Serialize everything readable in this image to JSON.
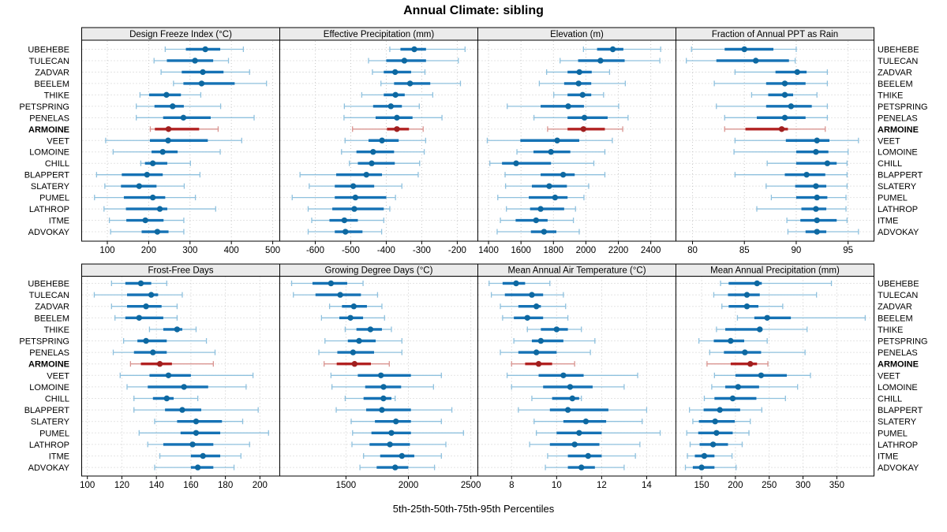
{
  "title": "Annual Climate: sibling",
  "caption": "5th-25th-50th-75th-95th Percentiles",
  "colors": {
    "series": "#1572b5",
    "series_light": "#8fc1de",
    "series_dot": "#0d68a1",
    "highlight": "#b22222",
    "highlight_light": "#d99490",
    "highlight_dot": "#a01f1f",
    "grid": "#c9c9c9",
    "strip_bg": "#ebebeb",
    "border": "#000000",
    "tick": "#000000",
    "text": "#000000"
  },
  "chart_data": {
    "type": "dotplot-percentile-trellis",
    "percentile_labels": [
      "5th",
      "25th",
      "50th",
      "75th",
      "95th"
    ],
    "highlight_site": "ARMOINE",
    "legend_position": "none",
    "grid": "dotted",
    "sites": [
      "UBEHEBE",
      "TULECAN",
      "ZADVAR",
      "BEELEM",
      "THIKE",
      "PETSPRING",
      "PENELAS",
      "ARMOINE",
      "VEET",
      "LOMOINE",
      "CHILL",
      "BLAPPERT",
      "SLATERY",
      "PUMEL",
      "LATHROP",
      "ITME",
      "ADVOKAY"
    ],
    "panels": [
      {
        "id": "design-freeze-index",
        "title": "Design Freeze Index (°C)",
        "row": 0,
        "col": 0,
        "xlim": [
          38,
          517
        ],
        "ticks": [
          100,
          200,
          300,
          400,
          500
        ],
        "tick_labels": [
          "100",
          "200",
          "300",
          "400",
          "500"
        ],
        "values": [
          [
            240,
            290,
            337,
            373,
            429
          ],
          [
            213,
            244,
            312,
            356,
            393
          ],
          [
            230,
            280,
            331,
            381,
            444
          ],
          [
            260,
            284,
            328,
            408,
            485
          ],
          [
            179,
            201,
            243,
            278,
            326
          ],
          [
            170,
            214,
            258,
            285,
            374
          ],
          [
            170,
            235,
            284,
            350,
            455
          ],
          [
            204,
            215,
            248,
            322,
            368
          ],
          [
            96,
            203,
            247,
            343,
            425
          ],
          [
            114,
            207,
            234,
            270,
            373
          ],
          [
            181,
            191,
            210,
            245,
            301
          ],
          [
            74,
            135,
            196,
            234,
            324
          ],
          [
            94,
            133,
            177,
            219,
            286
          ],
          [
            69,
            140,
            210,
            240,
            313
          ],
          [
            92,
            145,
            227,
            245,
            362
          ],
          [
            105,
            146,
            192,
            236,
            285
          ],
          [
            108,
            183,
            221,
            248,
            285
          ]
        ]
      },
      {
        "id": "effective-precipitation",
        "title": "Effective Precipitation (mm)",
        "row": 0,
        "col": 1,
        "xlim": [
          -700,
          -142
        ],
        "ticks": [
          -600,
          -500,
          -400,
          -300,
          -200
        ],
        "tick_labels": [
          "-600",
          "-500",
          "-400",
          "-300",
          "-200"
        ],
        "values": [
          [
            -390,
            -360,
            -321,
            -288,
            -178
          ],
          [
            -450,
            -400,
            -349,
            -288,
            -197
          ],
          [
            -439,
            -407,
            -375,
            -330,
            -291
          ],
          [
            -415,
            -378,
            -333,
            -276,
            -191
          ],
          [
            -469,
            -407,
            -374,
            -348,
            -269
          ],
          [
            -518,
            -437,
            -387,
            -356,
            -307
          ],
          [
            -519,
            -430,
            -370,
            -326,
            -243
          ],
          [
            -495,
            -398,
            -370,
            -336,
            -296
          ],
          [
            -516,
            -450,
            -412,
            -365,
            -289
          ],
          [
            -526,
            -484,
            -437,
            -378,
            -293
          ],
          [
            -504,
            -480,
            -441,
            -376,
            -306
          ],
          [
            -643,
            -541,
            -456,
            -412,
            -310
          ],
          [
            -617,
            -545,
            -493,
            -434,
            -356
          ],
          [
            -665,
            -545,
            -487,
            -400,
            -374
          ],
          [
            -620,
            -552,
            -490,
            -407,
            -390
          ],
          [
            -610,
            -560,
            -518,
            -480,
            -407
          ],
          [
            -620,
            -545,
            -515,
            -467,
            -413
          ]
        ]
      },
      {
        "id": "elevation",
        "title": "Elevation (m)",
        "row": 0,
        "col": 2,
        "xlim": [
          1334,
          2555
        ],
        "ticks": [
          1400,
          1600,
          1800,
          2000,
          2200,
          2400
        ],
        "tick_labels": [
          "1400",
          "1600",
          "1800",
          "2000",
          "2200",
          "2400"
        ],
        "values": [
          [
            1985,
            2069,
            2166,
            2231,
            2461
          ],
          [
            1841,
            1952,
            2090,
            2239,
            2456
          ],
          [
            1758,
            1887,
            1960,
            2036,
            2146
          ],
          [
            1713,
            1866,
            1955,
            2033,
            2243
          ],
          [
            1802,
            1887,
            1980,
            2033,
            2109
          ],
          [
            1515,
            1721,
            1891,
            1988,
            2202
          ],
          [
            1680,
            1887,
            1991,
            2134,
            2260
          ],
          [
            1764,
            1887,
            1985,
            2117,
            2227
          ],
          [
            1392,
            1596,
            1823,
            1959,
            2163
          ],
          [
            1575,
            1677,
            1785,
            1904,
            2117
          ],
          [
            1408,
            1483,
            1570,
            1785,
            2049
          ],
          [
            1502,
            1721,
            1860,
            1931,
            2117
          ],
          [
            1505,
            1667,
            1774,
            1883,
            2017
          ],
          [
            1457,
            1648,
            1810,
            1887,
            1988
          ],
          [
            1510,
            1656,
            1721,
            1866,
            1936
          ],
          [
            1473,
            1567,
            1693,
            1764,
            1923
          ],
          [
            1453,
            1661,
            1742,
            1818,
            1959
          ]
        ]
      },
      {
        "id": "fraction-ppt-rain",
        "title": "Fraction of Annual PPT as Rain",
        "row": 0,
        "col": 3,
        "xlim": [
          78.4,
          97.5
        ],
        "ticks": [
          80,
          85,
          90,
          95
        ],
        "tick_labels": [
          "80",
          "85",
          "90",
          "95"
        ],
        "values": [
          [
            79.9,
            83.1,
            85.0,
            87.8,
            90.0
          ],
          [
            79.4,
            82.3,
            86.1,
            89.3,
            89.9
          ],
          [
            84.1,
            88.0,
            90.1,
            91.0,
            93.0
          ],
          [
            82.1,
            87.1,
            88.9,
            90.9,
            93.0
          ],
          [
            85.7,
            87.3,
            88.9,
            89.7,
            92.0
          ],
          [
            82.3,
            87.1,
            89.5,
            91.5,
            93.0
          ],
          [
            83.1,
            86.2,
            88.9,
            90.9,
            93.0
          ],
          [
            83.1,
            85.1,
            88.6,
            89.2,
            92.8
          ],
          [
            84.1,
            89.0,
            92.0,
            93.2,
            96.0
          ],
          [
            84.0,
            90.0,
            91.9,
            93.1,
            95.0
          ],
          [
            87.2,
            90.0,
            93.0,
            93.9,
            94.9
          ],
          [
            84.1,
            88.9,
            91.0,
            92.8,
            94.9
          ],
          [
            87.1,
            89.9,
            91.9,
            92.9,
            94.9
          ],
          [
            87.6,
            90.0,
            92.0,
            93.0,
            94.8
          ],
          [
            86.2,
            90.5,
            91.9,
            92.9,
            94.8
          ],
          [
            89.1,
            90.4,
            92.0,
            93.9,
            94.9
          ],
          [
            89.2,
            90.9,
            92.0,
            92.9,
            96.0
          ]
        ]
      },
      {
        "id": "frost-free-days",
        "title": "Frost-Free Days",
        "row": 1,
        "col": 0,
        "xlim": [
          96.7,
          211.5
        ],
        "ticks": [
          100,
          120,
          140,
          160,
          180,
          200
        ],
        "tick_labels": [
          "100",
          "120",
          "140",
          "160",
          "180",
          "200"
        ],
        "values": [
          [
            114,
            122,
            131,
            137,
            146
          ],
          [
            104,
            123,
            137,
            141,
            155
          ],
          [
            114,
            123,
            134,
            143,
            152
          ],
          [
            116,
            122,
            130,
            144,
            152
          ],
          [
            136,
            144,
            152,
            155,
            163
          ],
          [
            121,
            129,
            134,
            146,
            169
          ],
          [
            115,
            127,
            138,
            146,
            174
          ],
          [
            125,
            131,
            142,
            149,
            173
          ],
          [
            119,
            136,
            147,
            160,
            196
          ],
          [
            123,
            135,
            156,
            170,
            192
          ],
          [
            127,
            138,
            146,
            150,
            164
          ],
          [
            127,
            145,
            155,
            166,
            199
          ],
          [
            139,
            152,
            163,
            178,
            190
          ],
          [
            130,
            154,
            163,
            177,
            205
          ],
          [
            135,
            144,
            161,
            173,
            194
          ],
          [
            142,
            160,
            167,
            177,
            189
          ],
          [
            139,
            160,
            164,
            173,
            185
          ]
        ]
      },
      {
        "id": "growing-degree-days",
        "title": "Growing Degree Days (°C)",
        "row": 1,
        "col": 1,
        "xlim": [
          970,
          2556
        ],
        "ticks": [
          1500,
          2000,
          2500
        ],
        "tick_labels": [
          "1500",
          "2000",
          "2500"
        ],
        "values": [
          [
            1065,
            1232,
            1380,
            1510,
            1637
          ],
          [
            1079,
            1256,
            1454,
            1620,
            1753
          ],
          [
            1369,
            1468,
            1563,
            1668,
            1788
          ],
          [
            1304,
            1447,
            1536,
            1637,
            1809
          ],
          [
            1494,
            1584,
            1696,
            1788,
            1864
          ],
          [
            1332,
            1515,
            1605,
            1738,
            1948
          ],
          [
            1283,
            1431,
            1557,
            1725,
            1948
          ],
          [
            1325,
            1426,
            1569,
            1700,
            1847
          ],
          [
            1380,
            1595,
            1780,
            2020,
            2264
          ],
          [
            1388,
            1654,
            1801,
            1942,
            2201
          ],
          [
            1494,
            1641,
            1800,
            1864,
            1894
          ],
          [
            1422,
            1662,
            1788,
            2020,
            2348
          ],
          [
            1542,
            1732,
            1900,
            2020,
            2264
          ],
          [
            1553,
            1704,
            1864,
            2020,
            2441
          ],
          [
            1548,
            1689,
            1852,
            2012,
            2300
          ],
          [
            1641,
            1774,
            1948,
            2047,
            2264
          ],
          [
            1612,
            1746,
            1894,
            1999,
            2209
          ]
        ]
      },
      {
        "id": "mean-annual-air-temperature",
        "title": "Mean Annual Air Temperature (°C)",
        "row": 1,
        "col": 2,
        "xlim": [
          6.5,
          15.3
        ],
        "ticks": [
          8,
          10,
          12,
          14
        ],
        "tick_labels": [
          "8",
          "10",
          "12",
          "14"
        ],
        "values": [
          [
            7.0,
            7.6,
            8.2,
            8.6,
            9.7
          ],
          [
            7.1,
            7.7,
            8.9,
            9.4,
            10.3
          ],
          [
            7.5,
            8.3,
            9.1,
            9.3,
            10.4
          ],
          [
            7.6,
            8.1,
            8.7,
            9.4,
            10.5
          ],
          [
            8.7,
            9.3,
            10.0,
            10.5,
            11.1
          ],
          [
            8.1,
            8.9,
            9.3,
            10.3,
            11.7
          ],
          [
            7.5,
            8.3,
            9.1,
            10.0,
            11.5
          ],
          [
            8.0,
            8.6,
            9.2,
            9.8,
            10.8
          ],
          [
            7.8,
            9.2,
            10.3,
            11.2,
            13.6
          ],
          [
            8.0,
            9.4,
            10.6,
            11.6,
            13.0
          ],
          [
            8.9,
            9.8,
            10.7,
            11.0,
            11.1
          ],
          [
            8.3,
            9.7,
            10.5,
            12.3,
            14.0
          ],
          [
            9.0,
            10.3,
            11.3,
            12.2,
            13.8
          ],
          [
            9.1,
            10.0,
            11.0,
            12.0,
            14.6
          ],
          [
            8.8,
            9.7,
            10.8,
            11.9,
            13.7
          ],
          [
            9.6,
            10.5,
            11.4,
            12.0,
            13.5
          ],
          [
            9.5,
            10.5,
            11.1,
            11.7,
            13.0
          ]
        ]
      },
      {
        "id": "mean-annual-precipitation",
        "title": "Mean Annual Precipitation (mm)",
        "row": 1,
        "col": 3,
        "xlim": [
          112,
          405
        ],
        "ticks": [
          150,
          200,
          250,
          300,
          350
        ],
        "tick_labels": [
          "150",
          "200",
          "250",
          "300",
          "350"
        ],
        "values": [
          [
            178,
            190,
            232,
            239,
            342
          ],
          [
            168,
            189,
            217,
            236,
            320
          ],
          [
            180,
            190,
            217,
            234,
            270
          ],
          [
            203,
            228,
            247,
            282,
            392
          ],
          [
            172,
            185,
            236,
            240,
            306
          ],
          [
            146,
            168,
            193,
            213,
            247
          ],
          [
            162,
            183,
            214,
            238,
            303
          ],
          [
            158,
            193,
            222,
            232,
            248
          ],
          [
            169,
            200,
            238,
            276,
            311
          ],
          [
            165,
            185,
            204,
            235,
            292
          ],
          [
            154,
            169,
            196,
            231,
            274
          ],
          [
            132,
            153,
            177,
            207,
            239
          ],
          [
            137,
            146,
            170,
            199,
            222
          ],
          [
            128,
            145,
            172,
            196,
            220
          ],
          [
            133,
            147,
            167,
            189,
            210
          ],
          [
            129,
            140,
            154,
            169,
            195
          ],
          [
            126,
            137,
            150,
            169,
            201
          ]
        ]
      }
    ]
  }
}
